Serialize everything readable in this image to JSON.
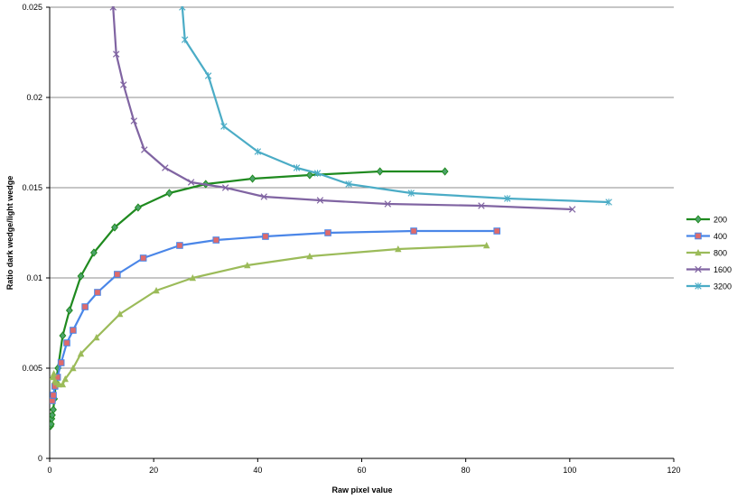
{
  "chart_data": {
    "type": "line",
    "title": "",
    "xlabel": "Raw pixel value",
    "ylabel": "Ratio dark wedge/light wedge",
    "xlim": [
      0,
      120
    ],
    "ylim": [
      0,
      0.025
    ],
    "x_ticks": [
      0,
      20,
      40,
      60,
      80,
      100,
      120
    ],
    "y_ticks": [
      0,
      0.005,
      0.01,
      0.015,
      0.02,
      0.025
    ],
    "x_tick_labels": [
      "0",
      "20",
      "40",
      "60",
      "80",
      "100",
      "120"
    ],
    "y_tick_labels": [
      "0",
      "0.005",
      "0.01",
      "0.015",
      "0.02",
      "0.025"
    ],
    "grid": "horizontal",
    "legend_position": "right",
    "series": [
      {
        "name": "200",
        "color": "#1f8a1f",
        "marker": "diamond",
        "marker_fill": "#4da36b",
        "points": [
          [
            0.2,
            0.0018
          ],
          [
            0.3,
            0.0019
          ],
          [
            0.4,
            0.0022
          ],
          [
            0.5,
            0.0024
          ],
          [
            0.7,
            0.0027
          ],
          [
            0.9,
            0.0033
          ],
          [
            1.2,
            0.0042
          ],
          [
            1.6,
            0.005
          ],
          [
            2.5,
            0.0068
          ],
          [
            3.8,
            0.0082
          ],
          [
            6.0,
            0.0101
          ],
          [
            8.5,
            0.0114
          ],
          [
            12.5,
            0.0128
          ],
          [
            17.0,
            0.0139
          ],
          [
            23.0,
            0.0147
          ],
          [
            30.0,
            0.0152
          ],
          [
            39.0,
            0.0155
          ],
          [
            50.0,
            0.0157
          ],
          [
            63.5,
            0.0159
          ],
          [
            76.0,
            0.0159
          ]
        ]
      },
      {
        "name": "400",
        "color": "#4a86e8",
        "marker": "square",
        "marker_fill": "#e06a6a",
        "points": [
          [
            0.5,
            0.0032
          ],
          [
            0.7,
            0.0035
          ],
          [
            1.0,
            0.004
          ],
          [
            1.5,
            0.0045
          ],
          [
            2.2,
            0.0053
          ],
          [
            3.3,
            0.0064
          ],
          [
            4.5,
            0.0071
          ],
          [
            6.8,
            0.0084
          ],
          [
            9.2,
            0.0092
          ],
          [
            13.0,
            0.0102
          ],
          [
            18.0,
            0.0111
          ],
          [
            25.0,
            0.0118
          ],
          [
            32.0,
            0.0121
          ],
          [
            41.5,
            0.0123
          ],
          [
            53.5,
            0.0125
          ],
          [
            70.0,
            0.0126
          ],
          [
            86.0,
            0.0126
          ]
        ]
      },
      {
        "name": "800",
        "color": "#9bbb59",
        "marker": "triangle",
        "marker_fill": "#9bbb59",
        "points": [
          [
            0.5,
            0.0045
          ],
          [
            0.8,
            0.0047
          ],
          [
            1.0,
            0.0043
          ],
          [
            1.3,
            0.0042
          ],
          [
            1.8,
            0.0041
          ],
          [
            2.5,
            0.0041
          ],
          [
            3.0,
            0.0044
          ],
          [
            4.5,
            0.005
          ],
          [
            6.0,
            0.0058
          ],
          [
            9.0,
            0.0067
          ],
          [
            13.5,
            0.008
          ],
          [
            20.5,
            0.0093
          ],
          [
            27.5,
            0.01
          ],
          [
            38.0,
            0.0107
          ],
          [
            50.0,
            0.0112
          ],
          [
            67.0,
            0.0116
          ],
          [
            84.0,
            0.0118
          ]
        ]
      },
      {
        "name": "1600",
        "color": "#8064a2",
        "marker": "x",
        "marker_fill": "#8064a2",
        "points": [
          [
            12.2,
            0.025
          ],
          [
            12.8,
            0.0224
          ],
          [
            14.2,
            0.0207
          ],
          [
            16.2,
            0.0187
          ],
          [
            18.2,
            0.0171
          ],
          [
            22.2,
            0.0161
          ],
          [
            27.2,
            0.0153
          ],
          [
            33.8,
            0.015
          ],
          [
            41.2,
            0.0145
          ],
          [
            52.0,
            0.0143
          ],
          [
            65.0,
            0.0141
          ],
          [
            83.0,
            0.014
          ],
          [
            100.5,
            0.0138
          ]
        ]
      },
      {
        "name": "3200",
        "color": "#4bacc6",
        "marker": "star",
        "marker_fill": "#4bacc6",
        "points": [
          [
            25.5,
            0.025
          ],
          [
            26.0,
            0.0232
          ],
          [
            30.5,
            0.0212
          ],
          [
            33.5,
            0.0184
          ],
          [
            40.0,
            0.017
          ],
          [
            47.5,
            0.0161
          ],
          [
            51.5,
            0.0158
          ],
          [
            57.5,
            0.0152
          ],
          [
            69.5,
            0.0147
          ],
          [
            88.0,
            0.0144
          ],
          [
            107.5,
            0.0142
          ]
        ]
      }
    ]
  }
}
